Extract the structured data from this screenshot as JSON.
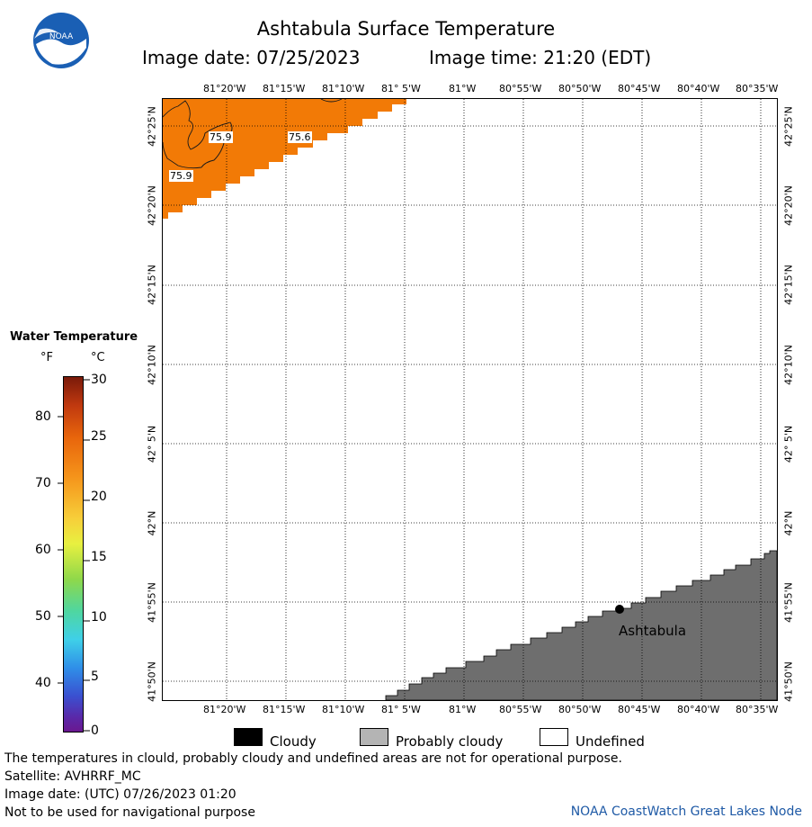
{
  "header": {
    "title": "Ashtabula Surface Temperature",
    "image_date": "Image date: 07/25/2023",
    "image_time": "Image time: 21:20 (EDT)"
  },
  "logo": {
    "text": "NOAA",
    "color": "#1a5fb4"
  },
  "map": {
    "lon_labels": [
      "81°20'W",
      "81°15'W",
      "81°10'W",
      "81° 5'W",
      "81°W",
      "80°55'W",
      "80°50'W",
      "80°45'W",
      "80°40'W",
      "80°35'W"
    ],
    "lat_labels": [
      "42°25'N",
      "42°20'N",
      "42°15'N",
      "42°10'N",
      "42° 5'N",
      "42°N",
      "41°55'N",
      "41°50'N"
    ],
    "contour_labels": [
      "75.9",
      "75.6",
      "75.9"
    ],
    "city": "Ashtabula",
    "colors": {
      "water_warm": "#f27a06",
      "land": "#6e6e6e",
      "grid": "#000000"
    }
  },
  "legend": {
    "title": "Water Temperature",
    "unit_f": "°F",
    "unit_c": "°C",
    "f_ticks": [
      "80",
      "70",
      "60",
      "50",
      "40"
    ],
    "c_ticks": [
      "30",
      "25",
      "20",
      "15",
      "10",
      "5",
      "0"
    ]
  },
  "cloud_legend": {
    "cloudy": "Cloudy",
    "probably_cloudy": "Probably cloudy",
    "undefined": "Undefined",
    "colors": {
      "cloudy": "#000000",
      "probably_cloudy": "#b4b4b4",
      "undefined": "#ffffff"
    }
  },
  "footer": {
    "line1": "The temperatures in clould, probably cloudy and undefined areas are not for operational purpose.",
    "line2": "Satellite: AVHRRF_MC",
    "line3": "Image date: (UTC) 07/26/2023  01:20",
    "line4": "Not to be used for navigational purpose",
    "credit": "NOAA CoastWatch Great Lakes Node"
  }
}
